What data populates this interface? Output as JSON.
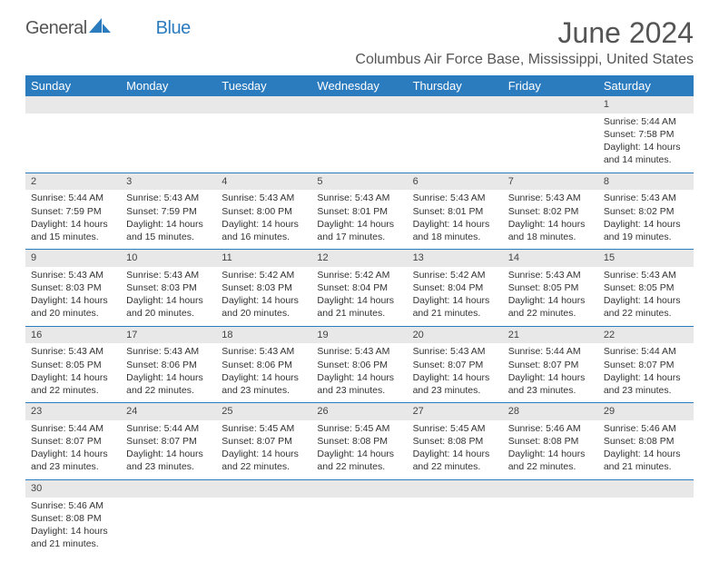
{
  "logo": {
    "general": "General",
    "blue": "Blue"
  },
  "title": "June 2024",
  "location": "Columbus Air Force Base, Mississippi, United States",
  "colors": {
    "header_bg": "#2b7bbf",
    "daynum_bg": "#e8e8e8",
    "rule": "#2b7bbf",
    "text": "#333",
    "title_text": "#555"
  },
  "dow": [
    "Sunday",
    "Monday",
    "Tuesday",
    "Wednesday",
    "Thursday",
    "Friday",
    "Saturday"
  ],
  "weeks": [
    [
      {
        "n": "",
        "l": []
      },
      {
        "n": "",
        "l": []
      },
      {
        "n": "",
        "l": []
      },
      {
        "n": "",
        "l": []
      },
      {
        "n": "",
        "l": []
      },
      {
        "n": "",
        "l": []
      },
      {
        "n": "1",
        "l": [
          "Sunrise: 5:44 AM",
          "Sunset: 7:58 PM",
          "Daylight: 14 hours and 14 minutes."
        ]
      }
    ],
    [
      {
        "n": "2",
        "l": [
          "Sunrise: 5:44 AM",
          "Sunset: 7:59 PM",
          "Daylight: 14 hours and 15 minutes."
        ]
      },
      {
        "n": "3",
        "l": [
          "Sunrise: 5:43 AM",
          "Sunset: 7:59 PM",
          "Daylight: 14 hours and 15 minutes."
        ]
      },
      {
        "n": "4",
        "l": [
          "Sunrise: 5:43 AM",
          "Sunset: 8:00 PM",
          "Daylight: 14 hours and 16 minutes."
        ]
      },
      {
        "n": "5",
        "l": [
          "Sunrise: 5:43 AM",
          "Sunset: 8:01 PM",
          "Daylight: 14 hours and 17 minutes."
        ]
      },
      {
        "n": "6",
        "l": [
          "Sunrise: 5:43 AM",
          "Sunset: 8:01 PM",
          "Daylight: 14 hours and 18 minutes."
        ]
      },
      {
        "n": "7",
        "l": [
          "Sunrise: 5:43 AM",
          "Sunset: 8:02 PM",
          "Daylight: 14 hours and 18 minutes."
        ]
      },
      {
        "n": "8",
        "l": [
          "Sunrise: 5:43 AM",
          "Sunset: 8:02 PM",
          "Daylight: 14 hours and 19 minutes."
        ]
      }
    ],
    [
      {
        "n": "9",
        "l": [
          "Sunrise: 5:43 AM",
          "Sunset: 8:03 PM",
          "Daylight: 14 hours and 20 minutes."
        ]
      },
      {
        "n": "10",
        "l": [
          "Sunrise: 5:43 AM",
          "Sunset: 8:03 PM",
          "Daylight: 14 hours and 20 minutes."
        ]
      },
      {
        "n": "11",
        "l": [
          "Sunrise: 5:42 AM",
          "Sunset: 8:03 PM",
          "Daylight: 14 hours and 20 minutes."
        ]
      },
      {
        "n": "12",
        "l": [
          "Sunrise: 5:42 AM",
          "Sunset: 8:04 PM",
          "Daylight: 14 hours and 21 minutes."
        ]
      },
      {
        "n": "13",
        "l": [
          "Sunrise: 5:42 AM",
          "Sunset: 8:04 PM",
          "Daylight: 14 hours and 21 minutes."
        ]
      },
      {
        "n": "14",
        "l": [
          "Sunrise: 5:43 AM",
          "Sunset: 8:05 PM",
          "Daylight: 14 hours and 22 minutes."
        ]
      },
      {
        "n": "15",
        "l": [
          "Sunrise: 5:43 AM",
          "Sunset: 8:05 PM",
          "Daylight: 14 hours and 22 minutes."
        ]
      }
    ],
    [
      {
        "n": "16",
        "l": [
          "Sunrise: 5:43 AM",
          "Sunset: 8:05 PM",
          "Daylight: 14 hours and 22 minutes."
        ]
      },
      {
        "n": "17",
        "l": [
          "Sunrise: 5:43 AM",
          "Sunset: 8:06 PM",
          "Daylight: 14 hours and 22 minutes."
        ]
      },
      {
        "n": "18",
        "l": [
          "Sunrise: 5:43 AM",
          "Sunset: 8:06 PM",
          "Daylight: 14 hours and 23 minutes."
        ]
      },
      {
        "n": "19",
        "l": [
          "Sunrise: 5:43 AM",
          "Sunset: 8:06 PM",
          "Daylight: 14 hours and 23 minutes."
        ]
      },
      {
        "n": "20",
        "l": [
          "Sunrise: 5:43 AM",
          "Sunset: 8:07 PM",
          "Daylight: 14 hours and 23 minutes."
        ]
      },
      {
        "n": "21",
        "l": [
          "Sunrise: 5:44 AM",
          "Sunset: 8:07 PM",
          "Daylight: 14 hours and 23 minutes."
        ]
      },
      {
        "n": "22",
        "l": [
          "Sunrise: 5:44 AM",
          "Sunset: 8:07 PM",
          "Daylight: 14 hours and 23 minutes."
        ]
      }
    ],
    [
      {
        "n": "23",
        "l": [
          "Sunrise: 5:44 AM",
          "Sunset: 8:07 PM",
          "Daylight: 14 hours and 23 minutes."
        ]
      },
      {
        "n": "24",
        "l": [
          "Sunrise: 5:44 AM",
          "Sunset: 8:07 PM",
          "Daylight: 14 hours and 23 minutes."
        ]
      },
      {
        "n": "25",
        "l": [
          "Sunrise: 5:45 AM",
          "Sunset: 8:07 PM",
          "Daylight: 14 hours and 22 minutes."
        ]
      },
      {
        "n": "26",
        "l": [
          "Sunrise: 5:45 AM",
          "Sunset: 8:08 PM",
          "Daylight: 14 hours and 22 minutes."
        ]
      },
      {
        "n": "27",
        "l": [
          "Sunrise: 5:45 AM",
          "Sunset: 8:08 PM",
          "Daylight: 14 hours and 22 minutes."
        ]
      },
      {
        "n": "28",
        "l": [
          "Sunrise: 5:46 AM",
          "Sunset: 8:08 PM",
          "Daylight: 14 hours and 22 minutes."
        ]
      },
      {
        "n": "29",
        "l": [
          "Sunrise: 5:46 AM",
          "Sunset: 8:08 PM",
          "Daylight: 14 hours and 21 minutes."
        ]
      }
    ],
    [
      {
        "n": "30",
        "l": [
          "Sunrise: 5:46 AM",
          "Sunset: 8:08 PM",
          "Daylight: 14 hours and 21 minutes."
        ]
      },
      {
        "n": "",
        "l": []
      },
      {
        "n": "",
        "l": []
      },
      {
        "n": "",
        "l": []
      },
      {
        "n": "",
        "l": []
      },
      {
        "n": "",
        "l": []
      },
      {
        "n": "",
        "l": []
      }
    ]
  ]
}
